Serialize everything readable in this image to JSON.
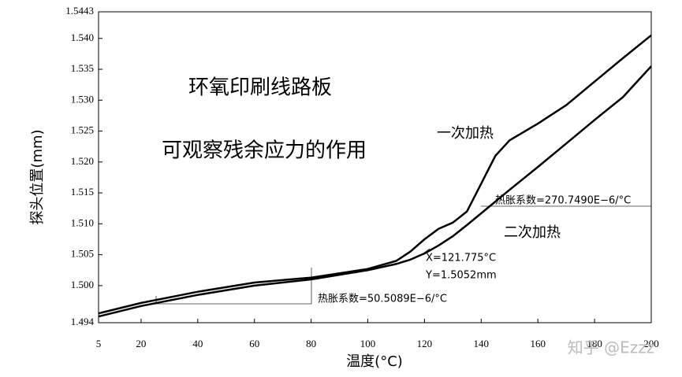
{
  "chart_data": {
    "type": "line",
    "x_label": "温度(°C)",
    "y_label": "探头位置(mm)",
    "x": [
      5,
      20,
      40,
      60,
      80,
      100,
      110,
      115,
      120,
      125,
      130,
      135,
      140,
      145,
      150,
      160,
      170,
      180,
      190,
      200
    ],
    "series": [
      {
        "name": "一次加热",
        "color": "#000000",
        "values": [
          1.4955,
          1.4972,
          1.499,
          1.5005,
          1.5013,
          1.5027,
          1.504,
          1.5055,
          1.5075,
          1.5092,
          1.5102,
          1.512,
          1.5165,
          1.521,
          1.5235,
          1.5262,
          1.5292,
          1.533,
          1.5368,
          1.5405
        ]
      },
      {
        "name": "二次加热",
        "color": "#000000",
        "values": [
          1.495,
          1.4967,
          1.4985,
          1.5,
          1.501,
          1.5025,
          1.5035,
          1.5042,
          1.5052,
          1.5065,
          1.508,
          1.5098,
          1.5117,
          1.5136,
          1.5155,
          1.5192,
          1.523,
          1.5268,
          1.5305,
          1.5355
        ]
      }
    ],
    "xlim": [
      5,
      200
    ],
    "xticks": [
      5,
      20,
      40,
      60,
      80,
      100,
      120,
      140,
      160,
      180,
      200
    ],
    "ylim": [
      1.494,
      1.5443
    ],
    "yticks": [
      1.494,
      {
        "value": 1.5,
        "label": "1.500"
      },
      1.505,
      {
        "value": 1.51,
        "label": "1.510"
      },
      1.515,
      {
        "value": 1.52,
        "label": "1.520"
      },
      1.525,
      {
        "value": 1.53,
        "label": "1.530"
      },
      1.535,
      {
        "value": 1.54,
        "label": "1.540"
      },
      1.5443
    ],
    "annotations": [
      "环氧印刷线路板",
      "可观察残余应力的作用",
      "热胀系数=270.7490E−6/°C",
      "热胀系数=50.5089E−6/°C",
      "X=121.775°C",
      "Y=1.5052mm"
    ],
    "watermark": "知乎 @Ezzz"
  }
}
